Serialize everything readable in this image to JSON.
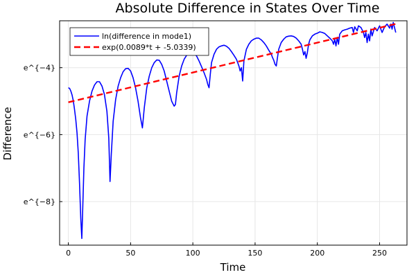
{
  "chart_data": {
    "type": "line",
    "title": "Absolute Difference in States Over Time",
    "xlabel": "Time",
    "ylabel": "Difference",
    "xlim": [
      -7,
      272
    ],
    "ylim": [
      -9.3,
      -2.6
    ],
    "x_ticks": [
      0,
      50,
      100,
      150,
      200,
      250
    ],
    "x_tick_labels": [
      "0",
      "50",
      "100",
      "150",
      "200",
      "250"
    ],
    "y_ticks": [
      -8,
      -6,
      -4
    ],
    "y_tick_labels": [
      "e^{−8}",
      "e^{−6}",
      "e^{−4}"
    ],
    "grid": true,
    "legend_position": "top-left",
    "series": [
      {
        "name": "ln(difference in mode1)",
        "color": "#0000ff",
        "style": "solid",
        "points": [
          [
            0,
            -4.6
          ],
          [
            1,
            -4.62
          ],
          [
            2,
            -4.7
          ],
          [
            3,
            -4.82
          ],
          [
            4,
            -5.0
          ],
          [
            5,
            -5.25
          ],
          [
            6,
            -5.55
          ],
          [
            7,
            -5.95
          ],
          [
            8,
            -6.55
          ],
          [
            9,
            -7.45
          ],
          [
            10,
            -8.5
          ],
          [
            10.8,
            -9.1
          ],
          [
            11.5,
            -8.3
          ],
          [
            12.5,
            -7.0
          ],
          [
            13.5,
            -6.15
          ],
          [
            15,
            -5.45
          ],
          [
            17,
            -5.0
          ],
          [
            19,
            -4.7
          ],
          [
            21,
            -4.52
          ],
          [
            23,
            -4.42
          ],
          [
            25,
            -4.42
          ],
          [
            27,
            -4.55
          ],
          [
            29,
            -4.8
          ],
          [
            31,
            -5.3
          ],
          [
            32.5,
            -6.1
          ],
          [
            33.5,
            -7.4
          ],
          [
            34.5,
            -6.6
          ],
          [
            36,
            -5.6
          ],
          [
            38,
            -4.95
          ],
          [
            40,
            -4.55
          ],
          [
            42,
            -4.3
          ],
          [
            44,
            -4.12
          ],
          [
            46,
            -4.03
          ],
          [
            48,
            -4.02
          ],
          [
            50,
            -4.1
          ],
          [
            52,
            -4.3
          ],
          [
            54,
            -4.6
          ],
          [
            56,
            -5.0
          ],
          [
            58,
            -5.5
          ],
          [
            59.5,
            -5.8
          ],
          [
            61,
            -5.2
          ],
          [
            63,
            -4.6
          ],
          [
            65,
            -4.25
          ],
          [
            67,
            -4.0
          ],
          [
            69,
            -3.85
          ],
          [
            71,
            -3.77
          ],
          [
            73,
            -3.78
          ],
          [
            75,
            -3.9
          ],
          [
            77,
            -4.1
          ],
          [
            79,
            -4.4
          ],
          [
            81,
            -4.7
          ],
          [
            83,
            -5.0
          ],
          [
            85,
            -5.15
          ],
          [
            86,
            -5.1
          ],
          [
            87,
            -4.75
          ],
          [
            89,
            -4.25
          ],
          [
            91,
            -3.95
          ],
          [
            93,
            -3.75
          ],
          [
            95,
            -3.63
          ],
          [
            97,
            -3.57
          ],
          [
            99,
            -3.55
          ],
          [
            101,
            -3.57
          ],
          [
            103,
            -3.65
          ],
          [
            105,
            -3.8
          ],
          [
            107,
            -3.97
          ],
          [
            109,
            -4.15
          ],
          [
            111,
            -4.35
          ],
          [
            112,
            -4.5
          ],
          [
            113,
            -4.6
          ],
          [
            114,
            -4.2
          ],
          [
            115,
            -3.85
          ],
          [
            117,
            -3.6
          ],
          [
            119,
            -3.45
          ],
          [
            121,
            -3.38
          ],
          [
            123,
            -3.35
          ],
          [
            125,
            -3.33
          ],
          [
            127,
            -3.36
          ],
          [
            129,
            -3.42
          ],
          [
            131,
            -3.52
          ],
          [
            133,
            -3.63
          ],
          [
            135,
            -3.75
          ],
          [
            136,
            -3.85
          ],
          [
            137,
            -3.95
          ],
          [
            138,
            -4.1
          ],
          [
            139,
            -4.0
          ],
          [
            140,
            -4.4
          ],
          [
            141,
            -3.8
          ],
          [
            143,
            -3.45
          ],
          [
            145,
            -3.3
          ],
          [
            147,
            -3.2
          ],
          [
            149,
            -3.15
          ],
          [
            151,
            -3.12
          ],
          [
            153,
            -3.12
          ],
          [
            155,
            -3.17
          ],
          [
            157,
            -3.25
          ],
          [
            159,
            -3.35
          ],
          [
            161,
            -3.48
          ],
          [
            163,
            -3.6
          ],
          [
            164,
            -3.7
          ],
          [
            165,
            -3.78
          ],
          [
            166,
            -3.9
          ],
          [
            167,
            -3.95
          ],
          [
            168,
            -3.7
          ],
          [
            169,
            -3.45
          ],
          [
            171,
            -3.25
          ],
          [
            173,
            -3.15
          ],
          [
            175,
            -3.08
          ],
          [
            177,
            -3.06
          ],
          [
            179,
            -3.05
          ],
          [
            181,
            -3.07
          ],
          [
            183,
            -3.12
          ],
          [
            185,
            -3.2
          ],
          [
            187,
            -3.3
          ],
          [
            188,
            -3.45
          ],
          [
            189,
            -3.62
          ],
          [
            190,
            -3.52
          ],
          [
            191,
            -3.72
          ],
          [
            192,
            -3.55
          ],
          [
            193,
            -3.3
          ],
          [
            194,
            -3.17
          ],
          [
            196,
            -3.05
          ],
          [
            198,
            -3.0
          ],
          [
            200,
            -2.97
          ],
          [
            202,
            -2.93
          ],
          [
            204,
            -2.95
          ],
          [
            206,
            -2.98
          ],
          [
            208,
            -3.05
          ],
          [
            210,
            -3.12
          ],
          [
            212,
            -3.2
          ],
          [
            213,
            -3.3
          ],
          [
            214,
            -3.15
          ],
          [
            215,
            -3.35
          ],
          [
            216,
            -3.1
          ],
          [
            217,
            -3.3
          ],
          [
            218,
            -3.0
          ],
          [
            220,
            -2.9
          ],
          [
            222,
            -2.87
          ],
          [
            224,
            -2.85
          ],
          [
            226,
            -2.82
          ],
          [
            228,
            -2.8
          ],
          [
            229,
            -2.95
          ],
          [
            230,
            -2.78
          ],
          [
            232,
            -2.9
          ],
          [
            233,
            -2.75
          ],
          [
            235,
            -2.8
          ],
          [
            237,
            -2.95
          ],
          [
            238,
            -3.1
          ],
          [
            239,
            -2.95
          ],
          [
            240,
            -3.25
          ],
          [
            241,
            -3.0
          ],
          [
            242,
            -3.2
          ],
          [
            243,
            -2.85
          ],
          [
            244,
            -3.05
          ],
          [
            246,
            -2.8
          ],
          [
            248,
            -2.9
          ],
          [
            250,
            -2.75
          ],
          [
            252,
            -2.95
          ],
          [
            254,
            -2.78
          ],
          [
            256,
            -2.7
          ],
          [
            258,
            -2.82
          ],
          [
            259,
            -2.7
          ],
          [
            260,
            -2.85
          ],
          [
            261,
            -2.65
          ],
          [
            262,
            -2.8
          ],
          [
            263,
            -2.95
          ]
        ]
      },
      {
        "name": "exp(0.0089*t + -5.0339)",
        "color": "#ff0000",
        "style": "dashed",
        "function": {
          "slope": 0.0089,
          "intercept": -5.0339,
          "x_range": [
            0,
            263
          ]
        }
      }
    ]
  }
}
